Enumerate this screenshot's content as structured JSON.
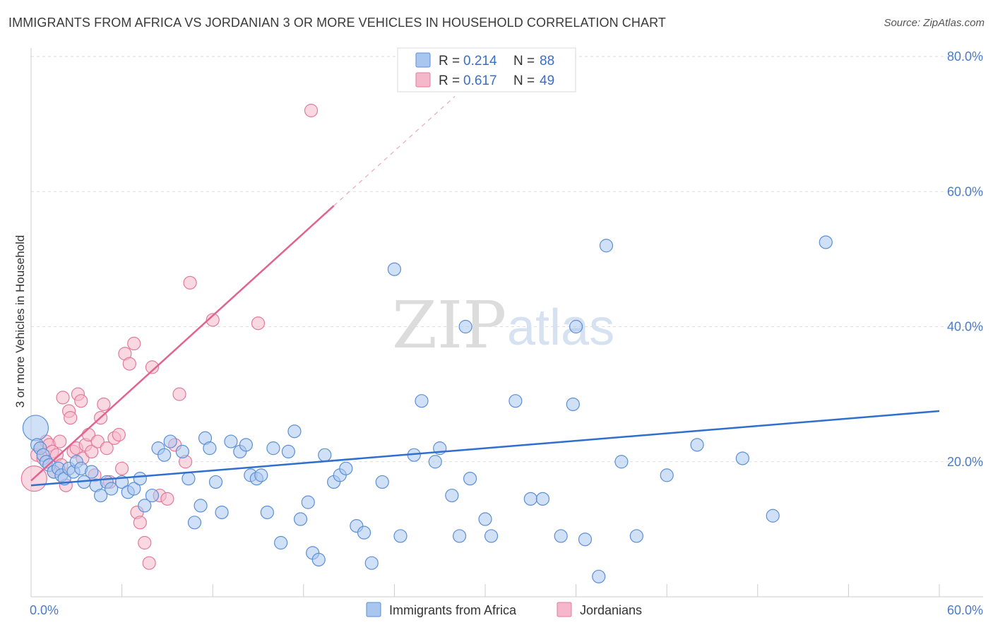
{
  "header": {
    "title": "IMMIGRANTS FROM AFRICA VS JORDANIAN 3 OR MORE VEHICLES IN HOUSEHOLD CORRELATION CHART",
    "source": "Source: ZipAtlas.com"
  },
  "watermark": {
    "zip": "ZIP",
    "atlas": "atlas"
  },
  "colors": {
    "africa_fill": "#a9c6ef",
    "africa_stroke": "#5b8fd6",
    "africa_line": "#2f6fcf",
    "jordan_fill": "#f5b8cb",
    "jordan_stroke": "#e27a9c",
    "jordan_line": "#e2638f",
    "grid": "#dddddd",
    "axis_label": "#4a7cc7"
  },
  "legend": {
    "rows": [
      {
        "r_label": "R = ",
        "r_value": "0.214",
        "n_label": "N = ",
        "n_value": "88"
      },
      {
        "r_label": "R = ",
        "r_value": "0.617",
        "n_label": "N = ",
        "n_value": "49"
      }
    ]
  },
  "chart_data": {
    "type": "scatter",
    "title": "IMMIGRANTS FROM AFRICA VS JORDANIAN 3 OR MORE VEHICLES IN HOUSEHOLD CORRELATION CHART",
    "xlabel": "",
    "ylabel": "3 or more Vehicles in Household",
    "xlim": [
      0,
      60
    ],
    "ylim": [
      0,
      80
    ],
    "x_tick_labels": [
      "0.0%",
      "60.0%"
    ],
    "y_ticks": [
      20,
      40,
      60,
      80
    ],
    "y_tick_labels": [
      "20.0%",
      "40.0%",
      "60.0%",
      "80.0%"
    ],
    "legend_position": "top-center",
    "series": [
      {
        "name": "Immigrants from Africa",
        "R": 0.214,
        "N": 88,
        "trend": {
          "x0": 0,
          "y0": 16.5,
          "x1": 60,
          "y1": 27.5,
          "dashed_ext": false
        },
        "points": [
          [
            0.3,
            25.0
          ],
          [
            0.4,
            22.5
          ],
          [
            0.6,
            22.0
          ],
          [
            0.8,
            21.0
          ],
          [
            1.0,
            20.0
          ],
          [
            1.2,
            19.5
          ],
          [
            1.5,
            18.5
          ],
          [
            1.8,
            19.0
          ],
          [
            2.0,
            18.0
          ],
          [
            2.2,
            17.5
          ],
          [
            2.5,
            19.0
          ],
          [
            2.8,
            18.5
          ],
          [
            3.0,
            20.0
          ],
          [
            3.3,
            19.0
          ],
          [
            3.5,
            17.0
          ],
          [
            4.0,
            18.5
          ],
          [
            4.3,
            16.5
          ],
          [
            4.6,
            15.0
          ],
          [
            5.0,
            17.0
          ],
          [
            5.3,
            16.0
          ],
          [
            6.0,
            17.0
          ],
          [
            6.4,
            15.5
          ],
          [
            6.8,
            16.0
          ],
          [
            7.2,
            17.5
          ],
          [
            7.5,
            13.5
          ],
          [
            8.0,
            15.0
          ],
          [
            8.4,
            22.0
          ],
          [
            8.8,
            21.0
          ],
          [
            9.2,
            23.0
          ],
          [
            10.0,
            21.5
          ],
          [
            10.4,
            17.5
          ],
          [
            10.8,
            11.0
          ],
          [
            11.2,
            13.5
          ],
          [
            11.5,
            23.5
          ],
          [
            11.8,
            22.0
          ],
          [
            12.2,
            17.0
          ],
          [
            12.6,
            12.5
          ],
          [
            13.2,
            23.0
          ],
          [
            13.8,
            21.5
          ],
          [
            14.2,
            22.5
          ],
          [
            14.5,
            18.0
          ],
          [
            14.9,
            17.5
          ],
          [
            15.2,
            18.0
          ],
          [
            15.6,
            12.5
          ],
          [
            16.0,
            22.0
          ],
          [
            16.5,
            8.0
          ],
          [
            17.0,
            21.5
          ],
          [
            17.4,
            24.5
          ],
          [
            17.8,
            11.5
          ],
          [
            18.3,
            14.0
          ],
          [
            18.6,
            6.5
          ],
          [
            19.0,
            5.5
          ],
          [
            19.4,
            21.0
          ],
          [
            20.0,
            17.0
          ],
          [
            20.4,
            18.0
          ],
          [
            20.8,
            19.0
          ],
          [
            21.5,
            10.5
          ],
          [
            22.0,
            9.5
          ],
          [
            22.5,
            5.0
          ],
          [
            23.2,
            17.0
          ],
          [
            24.0,
            48.5
          ],
          [
            24.4,
            9.0
          ],
          [
            25.3,
            21.0
          ],
          [
            25.8,
            29.0
          ],
          [
            26.7,
            20.0
          ],
          [
            27.0,
            22.0
          ],
          [
            27.8,
            15.0
          ],
          [
            28.3,
            9.0
          ],
          [
            28.7,
            40.0
          ],
          [
            29.0,
            17.5
          ],
          [
            30.0,
            11.5
          ],
          [
            30.4,
            9.0
          ],
          [
            32.0,
            29.0
          ],
          [
            33.0,
            14.5
          ],
          [
            33.8,
            14.5
          ],
          [
            35.0,
            9.0
          ],
          [
            35.8,
            28.5
          ],
          [
            36.6,
            8.5
          ],
          [
            36.0,
            40.0
          ],
          [
            37.5,
            3.0
          ],
          [
            38.0,
            52.0
          ],
          [
            39.0,
            20.0
          ],
          [
            40.0,
            9.0
          ],
          [
            42.0,
            18.0
          ],
          [
            44.0,
            22.5
          ],
          [
            47.0,
            20.5
          ],
          [
            49.0,
            12.0
          ],
          [
            52.5,
            52.5
          ]
        ]
      },
      {
        "name": "Jordanians",
        "R": 0.617,
        "N": 49,
        "trend": {
          "x0": 0,
          "y0": 17.2,
          "x1": 20.0,
          "y1": 57.9,
          "dashed_ext": true,
          "x2": 28.0,
          "y2": 74.1
        },
        "points": [
          [
            0.2,
            17.5
          ],
          [
            0.4,
            21.0
          ],
          [
            0.6,
            22.0
          ],
          [
            0.8,
            20.5
          ],
          [
            1.0,
            23.0
          ],
          [
            1.2,
            22.5
          ],
          [
            1.4,
            21.5
          ],
          [
            1.5,
            18.5
          ],
          [
            1.7,
            21.0
          ],
          [
            1.9,
            23.0
          ],
          [
            2.0,
            19.5
          ],
          [
            2.1,
            29.5
          ],
          [
            2.3,
            16.5
          ],
          [
            2.5,
            27.5
          ],
          [
            2.6,
            26.5
          ],
          [
            2.8,
            21.5
          ],
          [
            3.0,
            22.0
          ],
          [
            3.1,
            30.0
          ],
          [
            3.3,
            29.0
          ],
          [
            3.4,
            20.5
          ],
          [
            3.6,
            22.5
          ],
          [
            3.8,
            24.0
          ],
          [
            4.0,
            21.5
          ],
          [
            4.2,
            18.0
          ],
          [
            4.4,
            23.0
          ],
          [
            4.6,
            26.5
          ],
          [
            4.8,
            28.5
          ],
          [
            5.0,
            22.0
          ],
          [
            5.2,
            17.0
          ],
          [
            5.5,
            23.5
          ],
          [
            5.8,
            24.0
          ],
          [
            6.0,
            19.0
          ],
          [
            6.2,
            36.0
          ],
          [
            6.5,
            34.5
          ],
          [
            6.8,
            37.5
          ],
          [
            7.0,
            12.5
          ],
          [
            7.2,
            11.0
          ],
          [
            7.5,
            8.0
          ],
          [
            7.8,
            5.0
          ],
          [
            8.0,
            34.0
          ],
          [
            8.5,
            15.0
          ],
          [
            9.0,
            14.5
          ],
          [
            9.5,
            22.5
          ],
          [
            9.8,
            30.0
          ],
          [
            10.2,
            20.0
          ],
          [
            10.5,
            46.5
          ],
          [
            12.0,
            41.0
          ],
          [
            15.0,
            40.5
          ],
          [
            18.5,
            72.0
          ]
        ]
      }
    ]
  },
  "bottom_legend": {
    "items": [
      {
        "label": "Immigrants from Africa"
      },
      {
        "label": "Jordanians"
      }
    ]
  }
}
